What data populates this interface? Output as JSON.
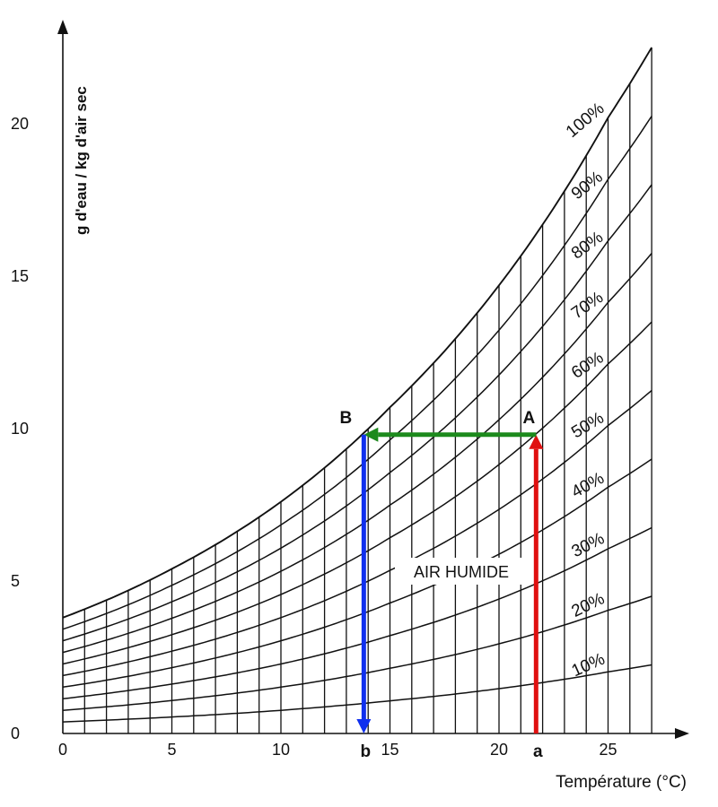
{
  "chart_data": {
    "type": "line",
    "title": "",
    "xlabel": "Température (°C)",
    "ylabel": "g d'eau / kg d'air sec",
    "xlim": [
      0,
      27
    ],
    "ylim": [
      0,
      22
    ],
    "x_ticks": [
      "0",
      "5",
      "10",
      "15",
      "20",
      "25"
    ],
    "y_ticks": [
      "0",
      "5",
      "10",
      "15",
      "20"
    ],
    "x_tick_values": [
      0,
      5,
      10,
      15,
      20,
      25
    ],
    "y_tick_values": [
      0,
      5,
      10,
      15,
      20
    ],
    "grid": "vertical lines every 1 °C",
    "saturation_curve": {
      "x": [
        0,
        5,
        10,
        15,
        20,
        25,
        27
      ],
      "y": [
        3.8,
        5.4,
        7.6,
        10.7,
        14.7,
        20.2,
        22.5
      ]
    },
    "series": [
      {
        "name": "10%",
        "rh": 0.1
      },
      {
        "name": "20%",
        "rh": 0.2
      },
      {
        "name": "30%",
        "rh": 0.3
      },
      {
        "name": "40%",
        "rh": 0.4
      },
      {
        "name": "50%",
        "rh": 0.5
      },
      {
        "name": "60%",
        "rh": 0.6
      },
      {
        "name": "70%",
        "rh": 0.7
      },
      {
        "name": "80%",
        "rh": 0.8
      },
      {
        "name": "90%",
        "rh": 0.9
      },
      {
        "name": "100%",
        "rh": 1.0
      }
    ],
    "points": [
      {
        "label": "A",
        "x": 21.7,
        "y": 9.8
      },
      {
        "label": "B",
        "x": 13.8,
        "y": 9.8
      }
    ],
    "axis_marks": [
      {
        "label": "a",
        "x": 21.7
      },
      {
        "label": "b",
        "x": 13.8
      }
    ],
    "arrows": [
      {
        "from": "a",
        "to": "A",
        "color": "#e01010"
      },
      {
        "from": "A",
        "to": "B",
        "color": "#1c8a1c"
      },
      {
        "from": "B",
        "to": "b",
        "color": "#1030ee"
      }
    ],
    "annotation": "AIR HUMIDE"
  }
}
